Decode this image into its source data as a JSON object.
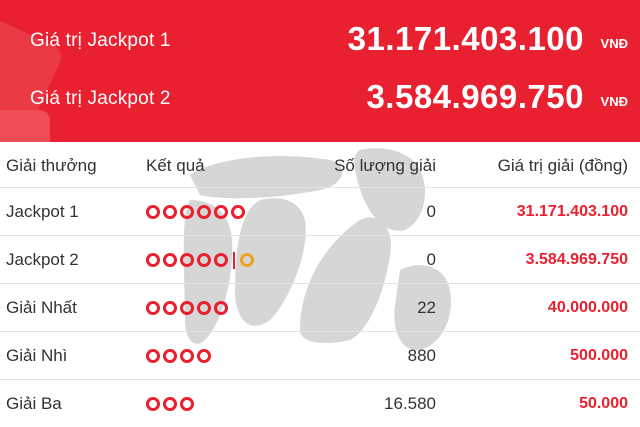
{
  "jackpots": [
    {
      "label": "Giá trị Jackpot 1",
      "value": "31.171.403.100",
      "unit": "VNĐ"
    },
    {
      "label": "Giá trị Jackpot 2",
      "value": "3.584.969.750",
      "unit": "VNĐ"
    }
  ],
  "table": {
    "headers": {
      "prize": "Giải thưởng",
      "result": "Kết quả",
      "count": "Số lượng giải",
      "value": "Giá trị giải (đồng)"
    },
    "rows": [
      {
        "prize": "Jackpot 1",
        "balls": 6,
        "special_ball": false,
        "count": "0",
        "value": "31.171.403.100"
      },
      {
        "prize": "Jackpot 2",
        "balls": 5,
        "special_ball": true,
        "count": "0",
        "value": "3.584.969.750"
      },
      {
        "prize": "Giải Nhất",
        "balls": 5,
        "special_ball": false,
        "count": "22",
        "value": "40.000.000"
      },
      {
        "prize": "Giải Nhì",
        "balls": 4,
        "special_ball": false,
        "count": "880",
        "value": "500.000"
      },
      {
        "prize": "Giải Ba",
        "balls": 3,
        "special_ball": false,
        "count": "16.580",
        "value": "50.000"
      }
    ]
  },
  "colors": {
    "brand_red": "#e8202f",
    "special_ball": "#f0a020",
    "watermark_gray": "#cfcfcf"
  },
  "icons": [
    "ball-icon",
    "special-ball-icon",
    "separator-icon",
    "watermark-logo"
  ]
}
